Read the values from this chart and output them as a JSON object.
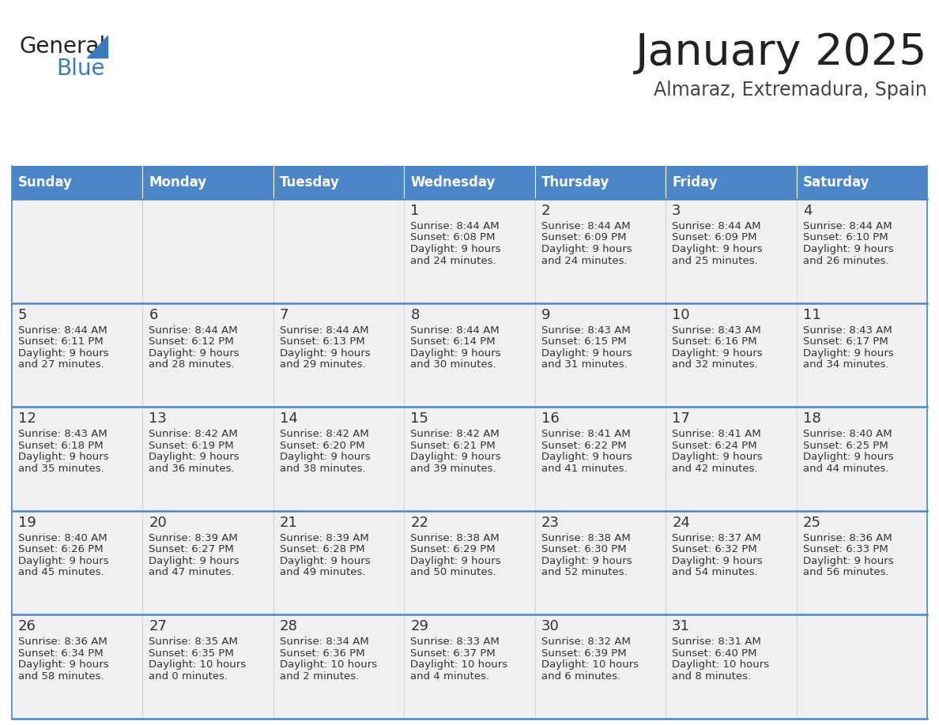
{
  "title": "January 2025",
  "subtitle": "Almaraz, Extremadura, Spain",
  "header_color": "#4a86c8",
  "header_text_color": "#ffffff",
  "cell_bg": "#f0f0f0",
  "day_headers": [
    "Sunday",
    "Monday",
    "Tuesday",
    "Wednesday",
    "Thursday",
    "Friday",
    "Saturday"
  ],
  "title_color": "#222222",
  "subtitle_color": "#444444",
  "text_color": "#333333",
  "line_color": "#4a86c8",
  "days": [
    {
      "day": 1,
      "col": 3,
      "row": 0,
      "sunrise": "8:44 AM",
      "sunset": "6:08 PM",
      "daylight_h": "9 hours",
      "daylight_m": "24 minutes."
    },
    {
      "day": 2,
      "col": 4,
      "row": 0,
      "sunrise": "8:44 AM",
      "sunset": "6:09 PM",
      "daylight_h": "9 hours",
      "daylight_m": "24 minutes."
    },
    {
      "day": 3,
      "col": 5,
      "row": 0,
      "sunrise": "8:44 AM",
      "sunset": "6:09 PM",
      "daylight_h": "9 hours",
      "daylight_m": "25 minutes."
    },
    {
      "day": 4,
      "col": 6,
      "row": 0,
      "sunrise": "8:44 AM",
      "sunset": "6:10 PM",
      "daylight_h": "9 hours",
      "daylight_m": "26 minutes."
    },
    {
      "day": 5,
      "col": 0,
      "row": 1,
      "sunrise": "8:44 AM",
      "sunset": "6:11 PM",
      "daylight_h": "9 hours",
      "daylight_m": "27 minutes."
    },
    {
      "day": 6,
      "col": 1,
      "row": 1,
      "sunrise": "8:44 AM",
      "sunset": "6:12 PM",
      "daylight_h": "9 hours",
      "daylight_m": "28 minutes."
    },
    {
      "day": 7,
      "col": 2,
      "row": 1,
      "sunrise": "8:44 AM",
      "sunset": "6:13 PM",
      "daylight_h": "9 hours",
      "daylight_m": "29 minutes."
    },
    {
      "day": 8,
      "col": 3,
      "row": 1,
      "sunrise": "8:44 AM",
      "sunset": "6:14 PM",
      "daylight_h": "9 hours",
      "daylight_m": "30 minutes."
    },
    {
      "day": 9,
      "col": 4,
      "row": 1,
      "sunrise": "8:43 AM",
      "sunset": "6:15 PM",
      "daylight_h": "9 hours",
      "daylight_m": "31 minutes."
    },
    {
      "day": 10,
      "col": 5,
      "row": 1,
      "sunrise": "8:43 AM",
      "sunset": "6:16 PM",
      "daylight_h": "9 hours",
      "daylight_m": "32 minutes."
    },
    {
      "day": 11,
      "col": 6,
      "row": 1,
      "sunrise": "8:43 AM",
      "sunset": "6:17 PM",
      "daylight_h": "9 hours",
      "daylight_m": "34 minutes."
    },
    {
      "day": 12,
      "col": 0,
      "row": 2,
      "sunrise": "8:43 AM",
      "sunset": "6:18 PM",
      "daylight_h": "9 hours",
      "daylight_m": "35 minutes."
    },
    {
      "day": 13,
      "col": 1,
      "row": 2,
      "sunrise": "8:42 AM",
      "sunset": "6:19 PM",
      "daylight_h": "9 hours",
      "daylight_m": "36 minutes."
    },
    {
      "day": 14,
      "col": 2,
      "row": 2,
      "sunrise": "8:42 AM",
      "sunset": "6:20 PM",
      "daylight_h": "9 hours",
      "daylight_m": "38 minutes."
    },
    {
      "day": 15,
      "col": 3,
      "row": 2,
      "sunrise": "8:42 AM",
      "sunset": "6:21 PM",
      "daylight_h": "9 hours",
      "daylight_m": "39 minutes."
    },
    {
      "day": 16,
      "col": 4,
      "row": 2,
      "sunrise": "8:41 AM",
      "sunset": "6:22 PM",
      "daylight_h": "9 hours",
      "daylight_m": "41 minutes."
    },
    {
      "day": 17,
      "col": 5,
      "row": 2,
      "sunrise": "8:41 AM",
      "sunset": "6:24 PM",
      "daylight_h": "9 hours",
      "daylight_m": "42 minutes."
    },
    {
      "day": 18,
      "col": 6,
      "row": 2,
      "sunrise": "8:40 AM",
      "sunset": "6:25 PM",
      "daylight_h": "9 hours",
      "daylight_m": "44 minutes."
    },
    {
      "day": 19,
      "col": 0,
      "row": 3,
      "sunrise": "8:40 AM",
      "sunset": "6:26 PM",
      "daylight_h": "9 hours",
      "daylight_m": "45 minutes."
    },
    {
      "day": 20,
      "col": 1,
      "row": 3,
      "sunrise": "8:39 AM",
      "sunset": "6:27 PM",
      "daylight_h": "9 hours",
      "daylight_m": "47 minutes."
    },
    {
      "day": 21,
      "col": 2,
      "row": 3,
      "sunrise": "8:39 AM",
      "sunset": "6:28 PM",
      "daylight_h": "9 hours",
      "daylight_m": "49 minutes."
    },
    {
      "day": 22,
      "col": 3,
      "row": 3,
      "sunrise": "8:38 AM",
      "sunset": "6:29 PM",
      "daylight_h": "9 hours",
      "daylight_m": "50 minutes."
    },
    {
      "day": 23,
      "col": 4,
      "row": 3,
      "sunrise": "8:38 AM",
      "sunset": "6:30 PM",
      "daylight_h": "9 hours",
      "daylight_m": "52 minutes."
    },
    {
      "day": 24,
      "col": 5,
      "row": 3,
      "sunrise": "8:37 AM",
      "sunset": "6:32 PM",
      "daylight_h": "9 hours",
      "daylight_m": "54 minutes."
    },
    {
      "day": 25,
      "col": 6,
      "row": 3,
      "sunrise": "8:36 AM",
      "sunset": "6:33 PM",
      "daylight_h": "9 hours",
      "daylight_m": "56 minutes."
    },
    {
      "day": 26,
      "col": 0,
      "row": 4,
      "sunrise": "8:36 AM",
      "sunset": "6:34 PM",
      "daylight_h": "9 hours",
      "daylight_m": "58 minutes."
    },
    {
      "day": 27,
      "col": 1,
      "row": 4,
      "sunrise": "8:35 AM",
      "sunset": "6:35 PM",
      "daylight_h": "10 hours",
      "daylight_m": "0 minutes."
    },
    {
      "day": 28,
      "col": 2,
      "row": 4,
      "sunrise": "8:34 AM",
      "sunset": "6:36 PM",
      "daylight_h": "10 hours",
      "daylight_m": "2 minutes."
    },
    {
      "day": 29,
      "col": 3,
      "row": 4,
      "sunrise": "8:33 AM",
      "sunset": "6:37 PM",
      "daylight_h": "10 hours",
      "daylight_m": "4 minutes."
    },
    {
      "day": 30,
      "col": 4,
      "row": 4,
      "sunrise": "8:32 AM",
      "sunset": "6:39 PM",
      "daylight_h": "10 hours",
      "daylight_m": "6 minutes."
    },
    {
      "day": 31,
      "col": 5,
      "row": 4,
      "sunrise": "8:31 AM",
      "sunset": "6:40 PM",
      "daylight_h": "10 hours",
      "daylight_m": "8 minutes."
    }
  ]
}
